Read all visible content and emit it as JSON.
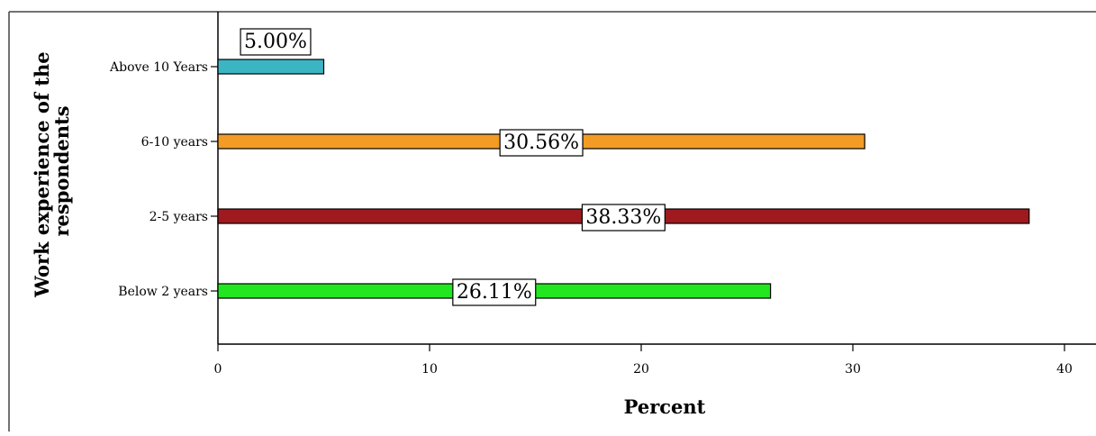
{
  "chart_data": {
    "type": "bar",
    "orientation": "horizontal",
    "categories": [
      "Above 10 Years",
      "6-10 years",
      "2-5 years",
      "Below 2 years"
    ],
    "values": [
      5.0,
      30.56,
      38.33,
      26.11
    ],
    "data_labels": [
      "5.00%",
      "30.56%",
      "38.33%",
      "26.11%"
    ],
    "colors": [
      "#3cb5c3",
      "#f29b25",
      "#9e1a1e",
      "#22e61f"
    ],
    "xlabel": "Percent",
    "ylabel": "Work experience of the respondents",
    "xlim": [
      0,
      40
    ],
    "x_ticks": [
      0,
      10,
      20,
      30,
      40
    ],
    "grid": false,
    "legend": "none"
  }
}
